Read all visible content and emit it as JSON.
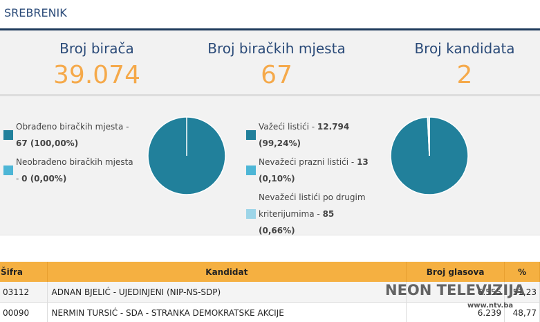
{
  "header": {
    "title": "SREBRENIK"
  },
  "stats": [
    {
      "label": "Broj birača",
      "value": "39.074"
    },
    {
      "label": "Broj biračkih mjesta",
      "value": "67"
    },
    {
      "label": "Broj kandidata",
      "value": "2"
    }
  ],
  "pies": [
    {
      "items": [
        {
          "label": "Obrađeno biračkih mjesta -",
          "value": 67,
          "value_label": "67 (100,00%)",
          "color": "#21809b"
        },
        {
          "label": "Neobrađeno biračkih mjesta -",
          "value": 0,
          "value_label": "0 (0,00%)",
          "color": "#4db6d6"
        }
      ]
    },
    {
      "items": [
        {
          "label": "Važeći listići -",
          "value": 12794,
          "value_label": "12.794 (99,24%)",
          "color": "#21809b"
        },
        {
          "label": "Nevažeći prazni listići -",
          "value": 13,
          "value_label": "13 (0,10%)",
          "color": "#4db6d6"
        },
        {
          "label": "Nevažeći listići po drugim kriterijumima -",
          "value": 85,
          "value_label": "85 (0,66%)",
          "color": "#9dd5e8"
        }
      ]
    }
  ],
  "table": {
    "columns": [
      "Šifra",
      "Kandidat",
      "Broj glasova",
      "%"
    ],
    "rows": [
      [
        "03112",
        "ADNAN BJELIĆ - UJEDINJENI (NIP-NS-SDP)",
        "6.555",
        "51,23"
      ],
      [
        "00090",
        "NERMIN TURSIĆ - SDA - STRANKA DEMOKRATSKE AKCIJE",
        "6.239",
        "48,77"
      ]
    ]
  },
  "watermark": {
    "title": "NEON TELEVIZIJA",
    "url": "www.ntv.ba"
  }
}
